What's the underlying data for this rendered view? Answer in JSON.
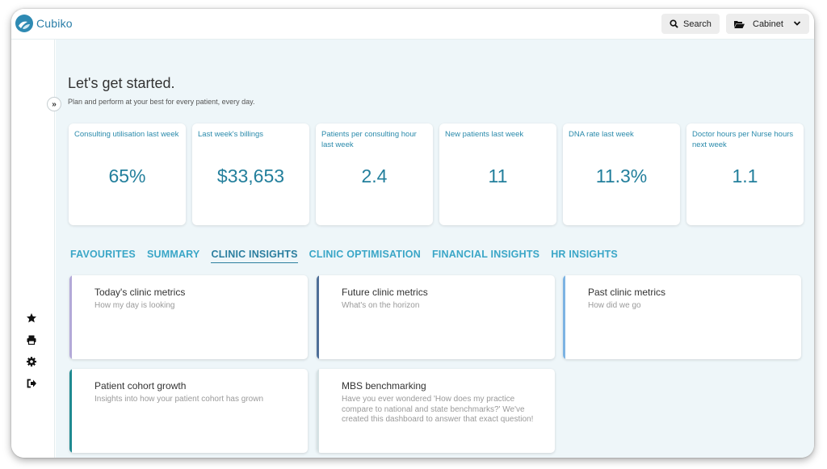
{
  "app": {
    "name": "Cubiko"
  },
  "topbar": {
    "search_label": "Search",
    "cabinet_label": "Cabinet"
  },
  "page": {
    "title": "Let's get started.",
    "subtitle": "Plan and perform at your best for every patient, every day."
  },
  "kpis": [
    {
      "label": "Consulting utilisation last week",
      "value": "65%"
    },
    {
      "label": "Last week's billings",
      "value": "$33,653"
    },
    {
      "label": "Patients per consulting hour last week",
      "value": "2.4"
    },
    {
      "label": "New patients last week",
      "value": "11"
    },
    {
      "label": "DNA rate last week",
      "value": "11.3%"
    },
    {
      "label": "Doctor hours per Nurse hours next week",
      "value": "1.1"
    }
  ],
  "tabs": [
    {
      "label": "FAVOURITES"
    },
    {
      "label": "SUMMARY"
    },
    {
      "label": "CLINIC INSIGHTS",
      "active": true
    },
    {
      "label": "CLINIC OPTIMISATION"
    },
    {
      "label": "FINANCIAL INSIGHTS"
    },
    {
      "label": "HR INSIGHTS"
    }
  ],
  "cards": [
    {
      "title": "Today's clinic metrics",
      "desc": "How my day is looking",
      "accent": "#b3a9d8"
    },
    {
      "title": "Future clinic metrics",
      "desc": "What's on the horizon",
      "accent": "#4e6f98"
    },
    {
      "title": "Past clinic metrics",
      "desc": "How did we go",
      "accent": "#7cb3e3"
    },
    {
      "title": "Patient cohort growth",
      "desc": "Insights into how your patient cohort has grown",
      "accent": "#1f8a91"
    },
    {
      "title": "MBS benchmarking",
      "desc": "Have you ever wondered 'How does my practice compare to national and state benchmarks?' We've created this dashboard to answer that exact question!",
      "accent": "#d6e2e4"
    }
  ],
  "sidebar": {
    "icons": [
      "star-icon",
      "printer-icon",
      "gear-icon",
      "sign-out-icon"
    ]
  },
  "colors": {
    "brand": "#2a7ea8",
    "kpi_value": "#237f9c",
    "tab": "#3aa6c7",
    "background": "#eef6f9"
  }
}
